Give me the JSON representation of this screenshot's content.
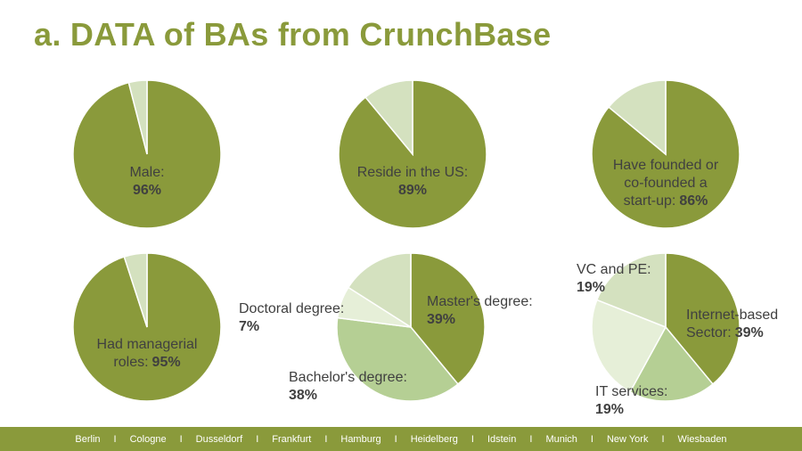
{
  "title": "a. DATA of BAs from CrunchBase",
  "colors": {
    "primary": "#8a9a3b",
    "light": "#d4e1bf",
    "medium": "#b5cf94",
    "lightest": "#e6efd8",
    "text": "#404040"
  },
  "chart_data": [
    {
      "type": "pie",
      "label_lines": [
        "Male:"
      ],
      "value_label": "96%",
      "slices": [
        {
          "value": 96,
          "color": "#8a9a3b"
        },
        {
          "value": 4,
          "color": "#d4e1bf"
        }
      ]
    },
    {
      "type": "pie",
      "label_lines": [
        "Reside in the US:"
      ],
      "value_label": "89%",
      "slices": [
        {
          "value": 89,
          "color": "#8a9a3b"
        },
        {
          "value": 11,
          "color": "#d4e1bf"
        }
      ]
    },
    {
      "type": "pie",
      "label_lines": [
        "Have founded or",
        "co-founded a",
        "start-up:"
      ],
      "value_label": "86%",
      "slices": [
        {
          "value": 86,
          "color": "#8a9a3b"
        },
        {
          "value": 14,
          "color": "#d4e1bf"
        }
      ]
    },
    {
      "type": "pie",
      "label_lines": [
        "Had managerial",
        "roles:"
      ],
      "value_label": "95%",
      "slices": [
        {
          "value": 95,
          "color": "#8a9a3b"
        },
        {
          "value": 5,
          "color": "#d4e1bf"
        }
      ]
    },
    {
      "type": "pie",
      "slices": [
        {
          "label": "Master's degree:",
          "value": 39,
          "value_label": "39%",
          "color": "#8a9a3b"
        },
        {
          "label": "Bachelor's degree:",
          "value": 38,
          "value_label": "38%",
          "color": "#b5cf94"
        },
        {
          "label": "Doctoral degree:",
          "value": 7,
          "value_label": "7%",
          "color": "#e6efd8"
        },
        {
          "value": 16,
          "color": "#d4e1bf"
        }
      ]
    },
    {
      "type": "pie",
      "slices": [
        {
          "label": "Internet-based",
          "label2": "Sector:",
          "value": 39,
          "value_label": "39%",
          "color": "#8a9a3b"
        },
        {
          "label": "IT services:",
          "value": 19,
          "value_label": "19%",
          "color": "#b5cf94"
        },
        {
          "value": 23,
          "color": "#e6efd8"
        },
        {
          "label": "VC and PE:",
          "value": 19,
          "value_label": "19%",
          "color": "#d4e1bf"
        }
      ]
    }
  ],
  "footer": {
    "cities": [
      "Berlin",
      "Cologne",
      "Dusseldorf",
      "Frankfurt",
      "Hamburg",
      "Heidelberg",
      "Idstein",
      "Munich",
      "New York",
      "Wiesbaden"
    ],
    "separator": "I"
  }
}
